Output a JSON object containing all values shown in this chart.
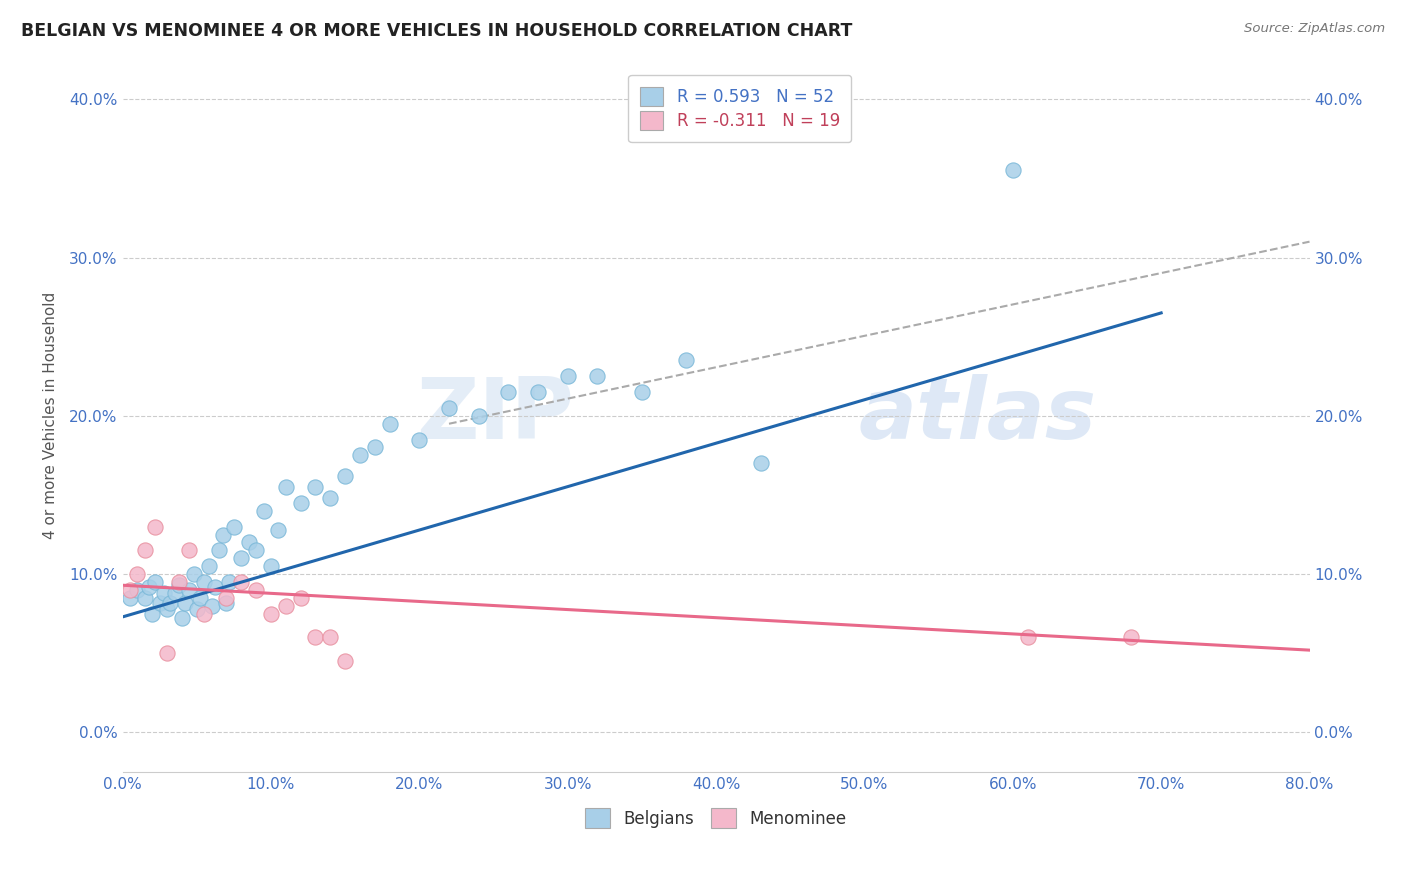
{
  "title": "BELGIAN VS MENOMINEE 4 OR MORE VEHICLES IN HOUSEHOLD CORRELATION CHART",
  "source": "Source: ZipAtlas.com",
  "xlim": [
    0.0,
    0.8
  ],
  "ylim": [
    -0.025,
    0.425
  ],
  "yticks": [
    0.0,
    0.1,
    0.2,
    0.3,
    0.4
  ],
  "xticks": [
    0.0,
    0.1,
    0.2,
    0.3,
    0.4,
    0.5,
    0.6,
    0.7,
    0.8
  ],
  "belgian_color": "#a8cfe8",
  "menominee_color": "#f4b8cb",
  "belgian_line_color": "#2166ac",
  "menominee_line_color": "#e8698a",
  "r_belgian": 0.593,
  "n_belgian": 52,
  "r_menominee": -0.311,
  "n_menominee": 19,
  "belgian_scatter_x": [
    0.005,
    0.01,
    0.015,
    0.018,
    0.02,
    0.022,
    0.025,
    0.028,
    0.03,
    0.032,
    0.035,
    0.038,
    0.04,
    0.042,
    0.045,
    0.048,
    0.05,
    0.052,
    0.055,
    0.058,
    0.06,
    0.062,
    0.065,
    0.068,
    0.07,
    0.072,
    0.075,
    0.08,
    0.085,
    0.09,
    0.095,
    0.1,
    0.105,
    0.11,
    0.12,
    0.13,
    0.14,
    0.15,
    0.16,
    0.17,
    0.18,
    0.2,
    0.22,
    0.24,
    0.26,
    0.28,
    0.3,
    0.32,
    0.35,
    0.38,
    0.43,
    0.6
  ],
  "belgian_scatter_y": [
    0.085,
    0.09,
    0.085,
    0.092,
    0.075,
    0.095,
    0.082,
    0.088,
    0.078,
    0.082,
    0.088,
    0.093,
    0.072,
    0.082,
    0.09,
    0.1,
    0.078,
    0.085,
    0.095,
    0.105,
    0.08,
    0.092,
    0.115,
    0.125,
    0.082,
    0.095,
    0.13,
    0.11,
    0.12,
    0.115,
    0.14,
    0.105,
    0.128,
    0.155,
    0.145,
    0.155,
    0.148,
    0.162,
    0.175,
    0.18,
    0.195,
    0.185,
    0.205,
    0.2,
    0.215,
    0.215,
    0.225,
    0.225,
    0.215,
    0.235,
    0.17,
    0.355
  ],
  "menominee_scatter_x": [
    0.005,
    0.01,
    0.015,
    0.022,
    0.03,
    0.038,
    0.045,
    0.055,
    0.07,
    0.08,
    0.09,
    0.1,
    0.11,
    0.12,
    0.13,
    0.14,
    0.15,
    0.61,
    0.68
  ],
  "menominee_scatter_y": [
    0.09,
    0.1,
    0.115,
    0.13,
    0.05,
    0.095,
    0.115,
    0.075,
    0.085,
    0.095,
    0.09,
    0.075,
    0.08,
    0.085,
    0.06,
    0.06,
    0.045,
    0.06,
    0.06
  ],
  "belgian_line_x0": 0.0,
  "belgian_line_y0": 0.073,
  "belgian_line_x1": 0.7,
  "belgian_line_y1": 0.265,
  "menominee_line_x0": 0.0,
  "menominee_line_y0": 0.093,
  "menominee_line_x1": 0.8,
  "menominee_line_y1": 0.052,
  "dash_line_x0": 0.22,
  "dash_line_y0": 0.195,
  "dash_line_x1": 0.8,
  "dash_line_y1": 0.31
}
